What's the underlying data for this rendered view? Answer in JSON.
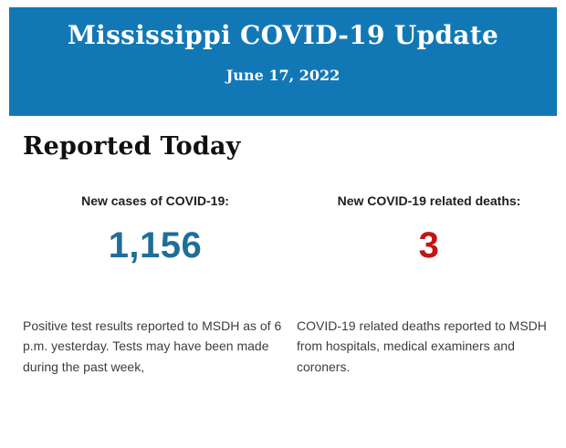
{
  "header": {
    "title": "Mississippi COVID-19 Update",
    "date": "June 17, 2022",
    "background_color": "#1278B5",
    "text_color": "#FFFFFF"
  },
  "main": {
    "section_title": "Reported Today",
    "stats": [
      {
        "label": "New cases of COVID-19:",
        "value": "1,156",
        "value_color": "#1F6E99",
        "description": "Positive test results reported to MSDH as of 6 p.m. yesterday. Tests may have been made during the past week,"
      },
      {
        "label": "New COVID-19 related deaths:",
        "value": "3",
        "value_color": "#C41414",
        "description": "COVID-19 related deaths reported to MSDH from hospitals, medical examiners and coroners."
      }
    ]
  }
}
